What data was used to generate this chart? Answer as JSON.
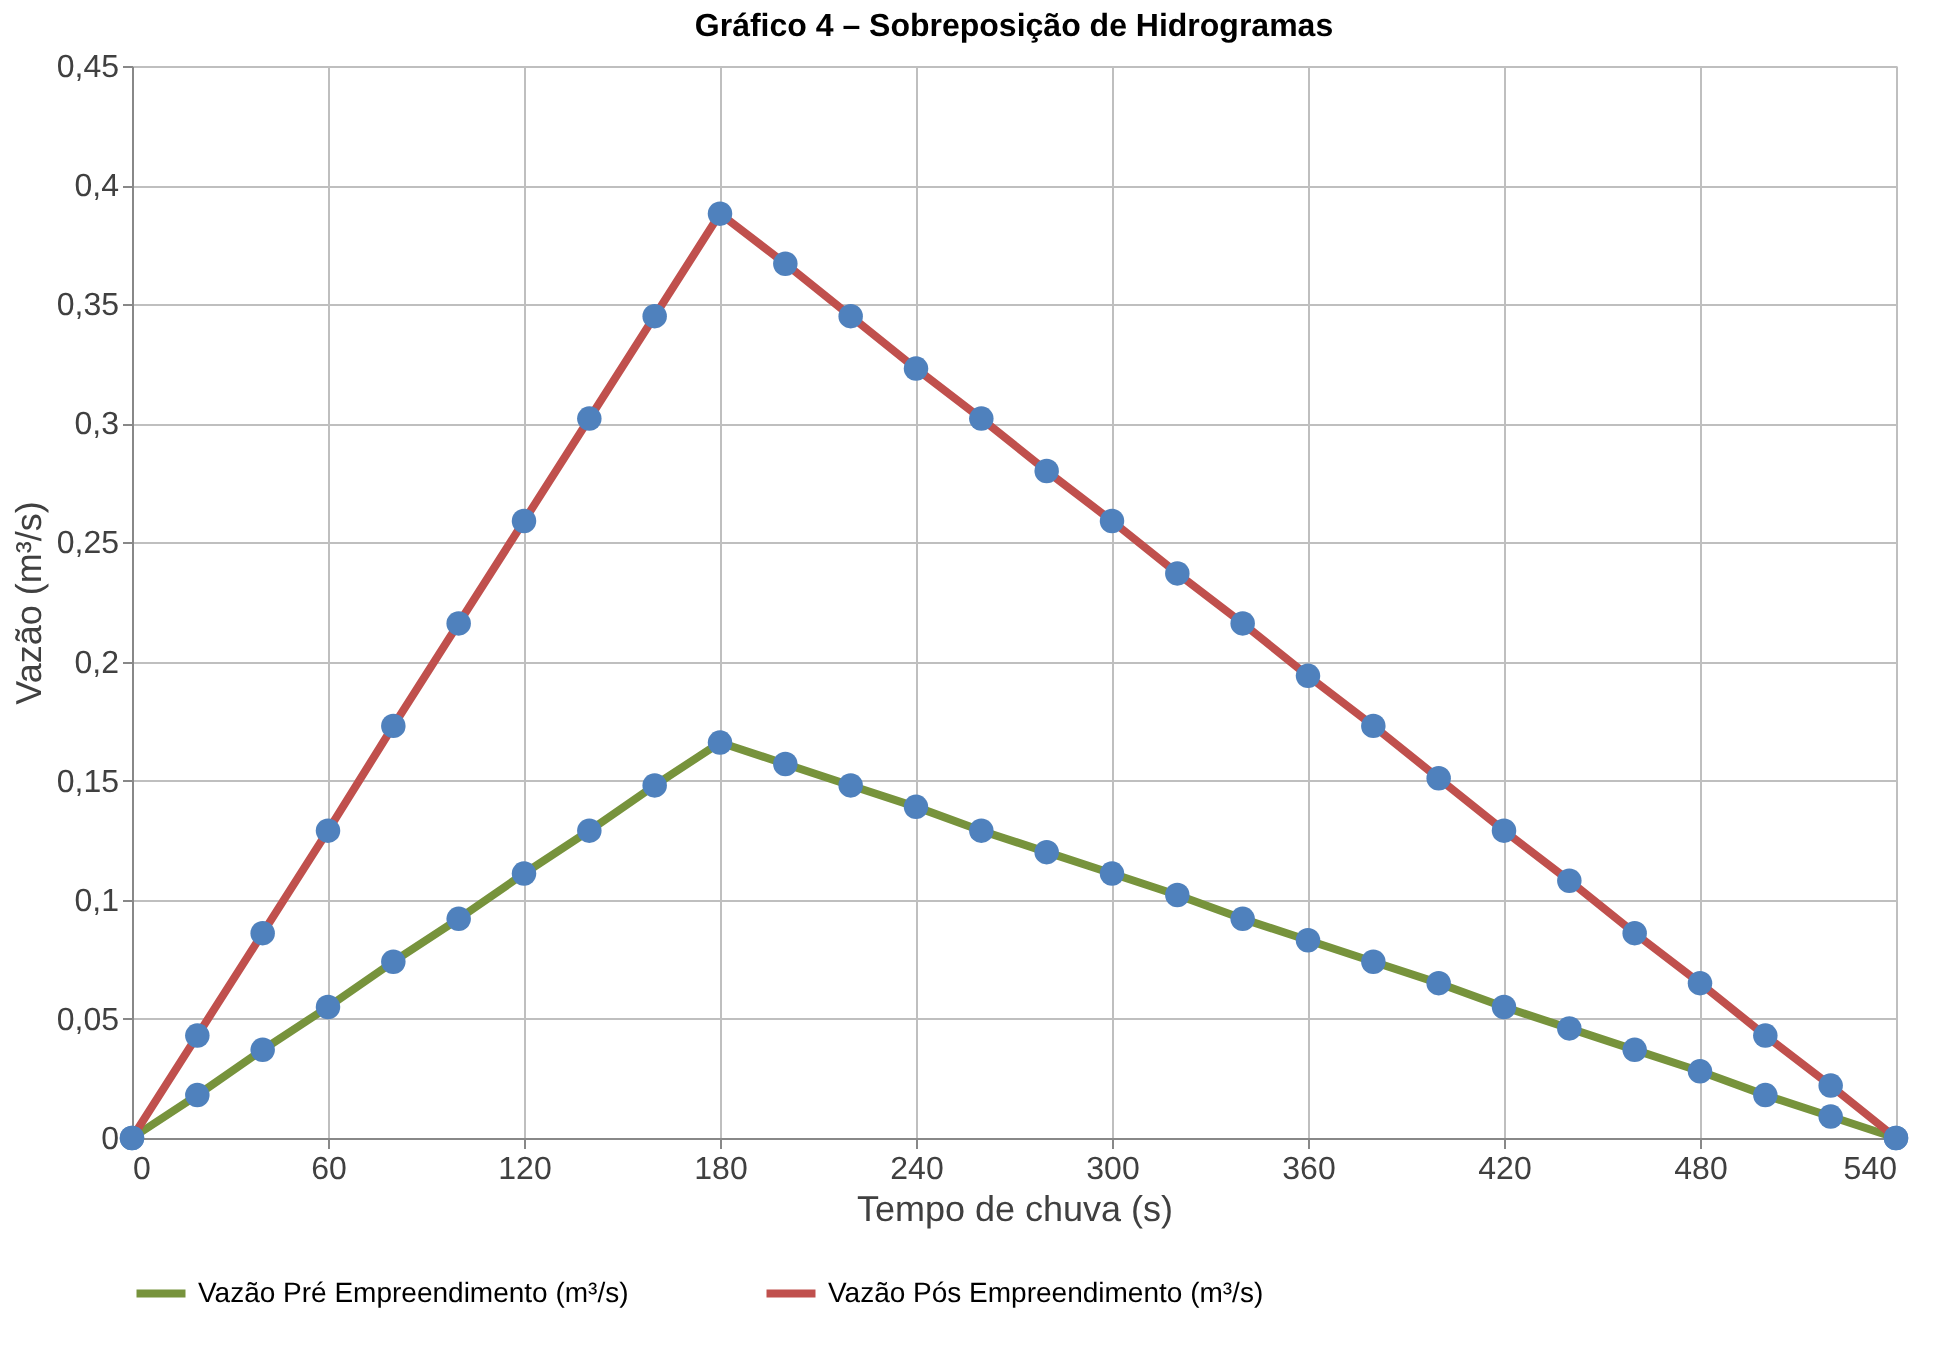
{
  "chart_data": {
    "type": "line",
    "title": "Gráfico 4 – Sobreposição de Hidrogramas",
    "xlabel": "Tempo de chuva (s)",
    "ylabel": "Vazão (m³/s)",
    "x": [
      0,
      20,
      40,
      60,
      80,
      100,
      120,
      140,
      160,
      180,
      200,
      220,
      240,
      260,
      280,
      300,
      320,
      340,
      360,
      380,
      400,
      420,
      440,
      460,
      480,
      500,
      520,
      540
    ],
    "series": [
      {
        "name": "Vazão Pré Empreendimento (m³/s)",
        "color": "#77933c",
        "values": [
          0,
          0.018,
          0.037,
          0.055,
          0.074,
          0.092,
          0.111,
          0.129,
          0.148,
          0.166,
          0.157,
          0.148,
          0.139,
          0.129,
          0.12,
          0.111,
          0.102,
          0.092,
          0.083,
          0.074,
          0.065,
          0.055,
          0.046,
          0.037,
          0.028,
          0.018,
          0.009,
          0
        ]
      },
      {
        "name": "Vazão Pós Empreendimento (m³/s)",
        "color": "#c0504d",
        "values": [
          0,
          0.043,
          0.086,
          0.129,
          0.173,
          0.216,
          0.259,
          0.302,
          0.345,
          0.388,
          0.367,
          0.345,
          0.323,
          0.302,
          0.28,
          0.259,
          0.237,
          0.216,
          0.194,
          0.173,
          0.151,
          0.129,
          0.108,
          0.086,
          0.065,
          0.043,
          0.022,
          0
        ]
      }
    ],
    "xlim": [
      0,
      540
    ],
    "xticks": [
      0,
      60,
      120,
      180,
      240,
      300,
      360,
      420,
      480,
      540
    ],
    "ylim": [
      0,
      0.45
    ],
    "yticks": [
      0,
      {
        "value": 0.05,
        "label": "0,05"
      },
      {
        "value": 0.1,
        "label": "0,1"
      },
      {
        "value": 0.15,
        "label": "0,15"
      },
      {
        "value": 0.2,
        "label": "0,2"
      },
      {
        "value": 0.25,
        "label": "0,25"
      },
      {
        "value": 0.3,
        "label": "0,3"
      },
      {
        "value": 0.35,
        "label": "0,35"
      },
      {
        "value": 0.4,
        "label": "0,4"
      },
      {
        "value": 0.45,
        "label": "0,45"
      }
    ],
    "grid": true,
    "legend": "bottom",
    "marker": "circle",
    "line_style": "solid"
  }
}
